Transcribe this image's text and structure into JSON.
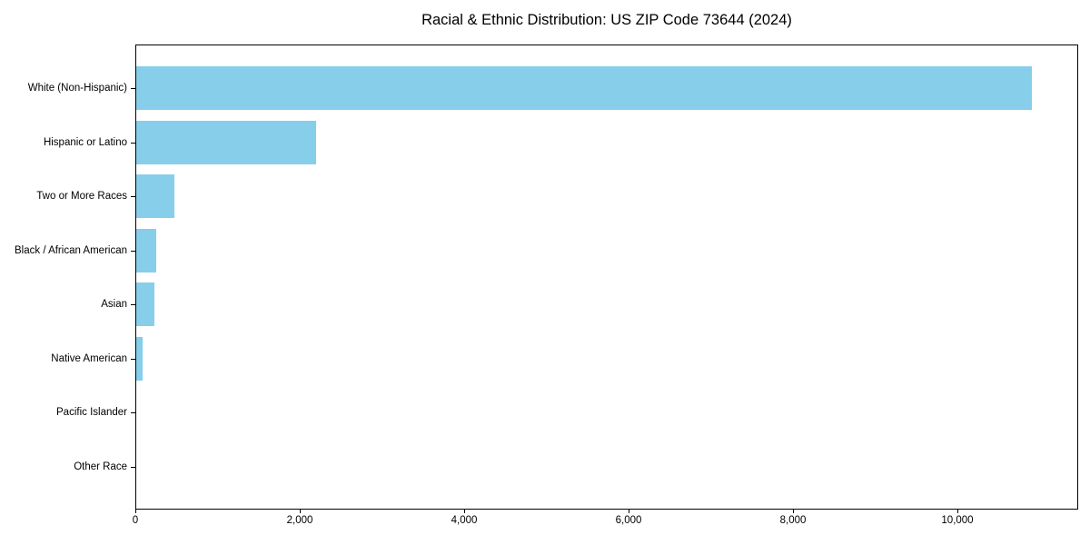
{
  "chart_data": {
    "type": "bar",
    "orientation": "horizontal",
    "title": "Racial & Ethnic Distribution: US ZIP Code 73644 (2024)",
    "xlabel": "",
    "ylabel": "",
    "categories": [
      "White (Non-Hispanic)",
      "Hispanic or Latino",
      "Two or More Races",
      "Black / African American",
      "Asian",
      "Native American",
      "Pacific Islander",
      "Other Race"
    ],
    "values": [
      10900,
      2190,
      460,
      240,
      225,
      80,
      0,
      0
    ],
    "xlim": [
      0,
      11470
    ],
    "xticks": [
      0,
      2000,
      4000,
      6000,
      8000,
      10000
    ],
    "xtick_labels": [
      "0",
      "2,000",
      "4,000",
      "6,000",
      "8,000",
      "10,000"
    ],
    "grid": false,
    "legend": null,
    "bar_color": "#87CEEB"
  },
  "colors": {
    "bar": "#87CEEB",
    "background": "#ffffff",
    "text": "#000000",
    "spine": "#000000"
  }
}
